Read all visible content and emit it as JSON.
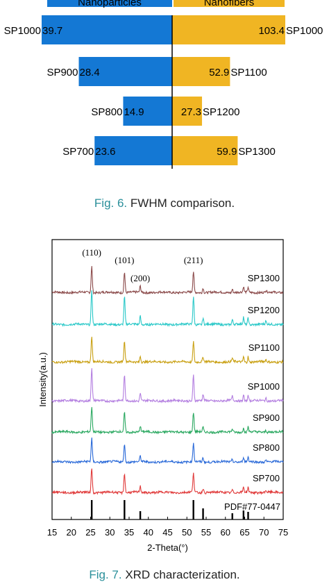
{
  "fig6": {
    "caption_label": "Fig. 6.",
    "caption_text": "FWHM comparison.",
    "chart_data": {
      "type": "bar",
      "legend": [
        {
          "name": "Nanoparticles",
          "color": "#1478d4"
        },
        {
          "name": "Nanofibers",
          "color": "#f0b523"
        }
      ],
      "rows": [
        {
          "left_label": "SP1000",
          "left_value": 39.7,
          "right_label": "SP1000",
          "right_value": 103.4
        },
        {
          "left_label": "SP900",
          "left_value": 28.4,
          "right_label": "SP1100",
          "right_value": 52.9
        },
        {
          "left_label": "SP800",
          "left_value": 14.9,
          "right_label": "SP1200",
          "right_value": 27.3
        },
        {
          "left_label": "SP700",
          "left_value": 23.6,
          "right_label": "SP1300",
          "right_value": 59.9
        }
      ]
    }
  },
  "fig7": {
    "caption_label": "Fig. 7.",
    "caption_text": "XRD characterization.",
    "chart_data": {
      "type": "line",
      "xlabel": "2-Theta(°)",
      "ylabel": "Intensity(a.u.)",
      "xlim": [
        15,
        75
      ],
      "xticks": [
        15,
        20,
        25,
        30,
        35,
        40,
        45,
        50,
        55,
        60,
        65,
        70,
        75
      ],
      "peaks": [
        {
          "label": "(110)",
          "x": 25.3
        },
        {
          "label": "(101)",
          "x": 33.8
        },
        {
          "label": "(200)",
          "x": 37.9
        },
        {
          "label": "(211)",
          "x": 51.7
        }
      ],
      "reference": {
        "name": "PDF#77-0447",
        "lines": [
          25.3,
          33.8,
          37.9,
          51.7,
          54.2,
          61.8,
          64.7,
          65.9
        ]
      },
      "series": [
        {
          "name": "SP1300",
          "color": "#8b4a4a"
        },
        {
          "name": "SP1200",
          "color": "#29c8c8"
        },
        {
          "name": "SP1100",
          "color": "#c9a012"
        },
        {
          "name": "SP1000",
          "color": "#b37ee0"
        },
        {
          "name": "SP900",
          "color": "#2aa860"
        },
        {
          "name": "SP800",
          "color": "#2868d8"
        },
        {
          "name": "SP700",
          "color": "#e03a3a"
        }
      ]
    }
  }
}
